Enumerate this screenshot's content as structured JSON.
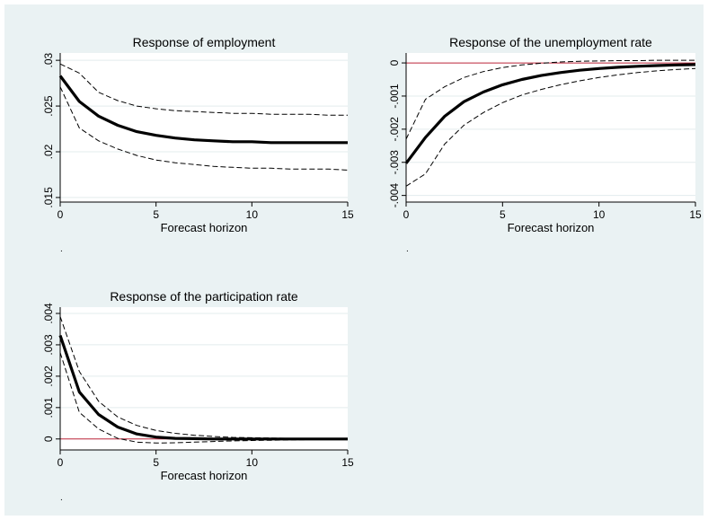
{
  "chart_data": [
    {
      "type": "line",
      "title": "Response of employment",
      "xlabel": "Forecast horizon",
      "ylabel": "",
      "note": ".",
      "xlim": [
        0,
        15
      ],
      "ylim": [
        0.0145,
        0.0308
      ],
      "xticks": [
        0,
        5,
        10,
        15
      ],
      "xtick_labels": [
        "0",
        "5",
        "10",
        "15"
      ],
      "yticks": [
        0.015,
        0.02,
        0.025,
        0.03
      ],
      "ytick_labels": [
        ".015",
        ".02",
        ".025",
        ".03"
      ],
      "grid": true,
      "zero_line": false,
      "x": [
        0,
        1,
        2,
        3,
        4,
        5,
        6,
        7,
        8,
        9,
        10,
        11,
        12,
        13,
        14,
        15
      ],
      "series": [
        {
          "role": "estimate",
          "values": [
            0.0283,
            0.0255,
            0.0239,
            0.0229,
            0.0222,
            0.0218,
            0.0215,
            0.0213,
            0.0212,
            0.0211,
            0.0211,
            0.021,
            0.021,
            0.021,
            0.021,
            0.021
          ]
        },
        {
          "role": "upper",
          "values": [
            0.0296,
            0.0286,
            0.0265,
            0.0256,
            0.025,
            0.0247,
            0.0245,
            0.0244,
            0.0243,
            0.0242,
            0.0242,
            0.0241,
            0.0241,
            0.0241,
            0.024,
            0.024
          ]
        },
        {
          "role": "lower",
          "values": [
            0.0271,
            0.0226,
            0.0212,
            0.0203,
            0.0196,
            0.0191,
            0.0188,
            0.0186,
            0.0184,
            0.0183,
            0.0182,
            0.0182,
            0.0181,
            0.0181,
            0.0181,
            0.018
          ]
        }
      ]
    },
    {
      "type": "line",
      "title": "Response of the unemployment rate",
      "xlabel": "Forecast horizon",
      "ylabel": "",
      "note": ".",
      "xlim": [
        0,
        15
      ],
      "ylim": [
        -0.0042,
        0.0003
      ],
      "xticks": [
        0,
        5,
        10,
        15
      ],
      "xtick_labels": [
        "0",
        "5",
        "10",
        "15"
      ],
      "yticks": [
        -0.004,
        -0.003,
        -0.002,
        -0.001,
        0
      ],
      "ytick_labels": [
        "-.004",
        "-.003",
        "-.002",
        "-.001",
        "0"
      ],
      "grid": true,
      "zero_line": true,
      "zero_line_color": "#c0283c",
      "x": [
        0,
        1,
        2,
        3,
        4,
        5,
        6,
        7,
        8,
        9,
        10,
        11,
        12,
        13,
        14,
        15
      ],
      "series": [
        {
          "role": "estimate",
          "values": [
            -0.00303,
            -0.00225,
            -0.00161,
            -0.00117,
            -0.00088,
            -0.00066,
            -0.0005,
            -0.00038,
            -0.00029,
            -0.00022,
            -0.00017,
            -0.00013,
            -0.0001,
            -8e-05,
            -6e-05,
            -5e-05
          ]
        },
        {
          "role": "upper",
          "values": [
            -0.0023,
            -0.0011,
            -0.00072,
            -0.00044,
            -0.00026,
            -0.00014,
            -6e-05,
            -1e-05,
            3e-05,
            5e-05,
            6e-05,
            7e-05,
            7e-05,
            8e-05,
            8e-05,
            8e-05
          ]
        },
        {
          "role": "lower",
          "values": [
            -0.00372,
            -0.00335,
            -0.00245,
            -0.00188,
            -0.0015,
            -0.0012,
            -0.00097,
            -0.0008,
            -0.00066,
            -0.00054,
            -0.00044,
            -0.00036,
            -0.00029,
            -0.00024,
            -0.0002,
            -0.00017
          ]
        }
      ]
    },
    {
      "type": "line",
      "title": "Response of the participation rate",
      "xlabel": "Forecast horizon",
      "ylabel": "",
      "note": ".",
      "xlim": [
        0,
        15
      ],
      "ylim": [
        -0.00035,
        0.0042
      ],
      "xticks": [
        0,
        5,
        10,
        15
      ],
      "xtick_labels": [
        "0",
        "5",
        "10",
        "15"
      ],
      "yticks": [
        0,
        0.001,
        0.002,
        0.003,
        0.004
      ],
      "ytick_labels": [
        "0",
        ".001",
        ".002",
        ".003",
        ".004"
      ],
      "grid": true,
      "zero_line": true,
      "zero_line_color": "#c0283c",
      "x": [
        0,
        1,
        2,
        3,
        4,
        5,
        6,
        7,
        8,
        9,
        10,
        11,
        12,
        13,
        14,
        15
      ],
      "series": [
        {
          "role": "estimate",
          "values": [
            0.0033,
            0.0015,
            0.00078,
            0.00038,
            0.00016,
            6e-05,
            2e-05,
            1e-05,
            0.0,
            0.0,
            0.0,
            0.0,
            0.0,
            0.0,
            0.0,
            0.0
          ]
        },
        {
          "role": "upper",
          "values": [
            0.0039,
            0.00215,
            0.0012,
            0.0007,
            0.00043,
            0.00027,
            0.00018,
            0.00012,
            8e-05,
            5e-05,
            4e-05,
            3e-05,
            2e-05,
            2e-05,
            1e-05,
            1e-05
          ]
        },
        {
          "role": "lower",
          "values": [
            0.00275,
            0.00085,
            0.00032,
            2e-05,
            -0.0001,
            -0.00013,
            -0.00012,
            -0.0001,
            -8e-05,
            -6e-05,
            -5e-05,
            -4e-05,
            -3e-05,
            -2e-05,
            -2e-05,
            -1e-05
          ]
        }
      ]
    }
  ]
}
